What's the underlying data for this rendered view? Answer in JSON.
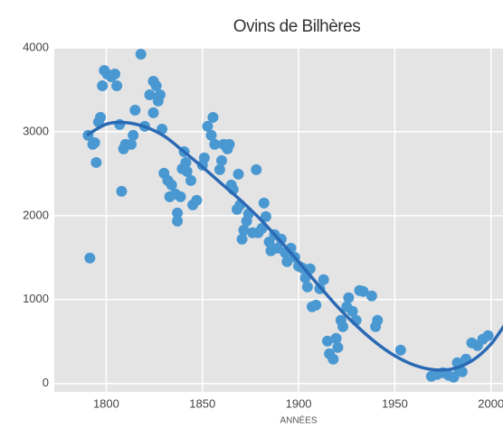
{
  "chart_data": {
    "type": "scatter",
    "title": "Ovins de Bilhères",
    "x_label": "ANNÉES",
    "xlim": [
      1773,
      2010
    ],
    "ylim": [
      -100,
      4000
    ],
    "xticks": [
      1800,
      1850,
      1900,
      1950,
      2000
    ],
    "yticks": [
      0,
      1000,
      2000,
      3000,
      4000
    ],
    "grid": true,
    "background": "#e4e4e4",
    "series": [
      {
        "kind": "scatter",
        "color": "#4a98d2",
        "x": [
          1791.5,
          1790.6,
          1793,
          1794.8,
          1794,
          1796,
          1797,
          1798,
          1799,
          1800.5,
          1802.6,
          1804.5,
          1805.5,
          1807,
          1808,
          1809,
          1810,
          1813,
          1814,
          1815,
          1818,
          1820,
          1822.6,
          1824.5,
          1824.5,
          1826,
          1827,
          1828,
          1829,
          1830,
          1832,
          1833,
          1834,
          1836,
          1837,
          1837,
          1838.6,
          1839.5,
          1840.5,
          1841.4,
          1842,
          1844,
          1845,
          1847,
          1850,
          1851,
          1852.7,
          1854.6,
          1855.5,
          1856.4,
          1859,
          1860,
          1861,
          1863,
          1864,
          1865,
          1866,
          1868,
          1868.7,
          1869.6,
          1870.6,
          1871.5,
          1873,
          1874,
          1876,
          1878,
          1879,
          1881,
          1882,
          1883,
          1884.7,
          1885.6,
          1887.5,
          1889,
          1891,
          1893,
          1894,
          1896,
          1898,
          1900,
          1902,
          1903.5,
          1904.6,
          1906,
          1907,
          1909,
          1911,
          1913,
          1915,
          1916,
          1918,
          1919.5,
          1920.4,
          1922,
          1923,
          1925,
          1926,
          1928,
          1929.9,
          1931.7,
          1933.6,
          1938,
          1940,
          1941,
          1953,
          1969,
          1972,
          1975,
          1978,
          1980.6,
          1982.5,
          1983.5,
          1985,
          1987,
          1990,
          1993,
          1995.7,
          1998.5
        ],
        "values": [
          1495,
          2957,
          2850,
          2634,
          2870,
          3118,
          3172,
          3548,
          3731,
          3688,
          3656,
          3688,
          3548,
          3086,
          2290,
          2796,
          2850,
          2850,
          2957,
          3258,
          3925,
          3065,
          3441,
          3602,
          3226,
          3548,
          3366,
          3441,
          3032,
          2505,
          2419,
          2226,
          2366,
          2258,
          2032,
          1935,
          2226,
          2559,
          2763,
          2634,
          2527,
          2419,
          2129,
          2183,
          2602,
          2688,
          3065,
          2957,
          3172,
          2850,
          2548,
          2656,
          2850,
          2796,
          2850,
          2366,
          2312,
          2075,
          2495,
          2129,
          1720,
          1828,
          1935,
          2022,
          1796,
          2548,
          1796,
          1849,
          2151,
          1989,
          1688,
          1581,
          1774,
          1613,
          1720,
          1559,
          1452,
          1613,
          1505,
          1398,
          1376,
          1258,
          1151,
          1366,
          914,
          935,
          1129,
          1237,
          505,
          355,
          290,
          538,
          430,
          753,
          677,
          914,
          1022,
          860,
          753,
          1108,
          1097,
          1043,
          677,
          753,
          398,
          86,
          108,
          129,
          97,
          75,
          247,
          161,
          140,
          290,
          484,
          452,
          527,
          570
        ]
      },
      {
        "kind": "line",
        "color": "#2a69b4",
        "x": [
          1790,
          1800,
          1810,
          1820,
          1830,
          1840,
          1850,
          1860,
          1870,
          1880,
          1890,
          1900,
          1910,
          1920,
          1930,
          1940,
          1950,
          1960,
          1970,
          1980,
          1990,
          2000,
          2010
        ],
        "values": [
          2960,
          3090,
          3110,
          3060,
          2950,
          2770,
          2580,
          2380,
          2180,
          1960,
          1710,
          1450,
          1180,
          920,
          690,
          490,
          330,
          220,
          165,
          175,
          270,
          470,
          800
        ]
      }
    ]
  }
}
